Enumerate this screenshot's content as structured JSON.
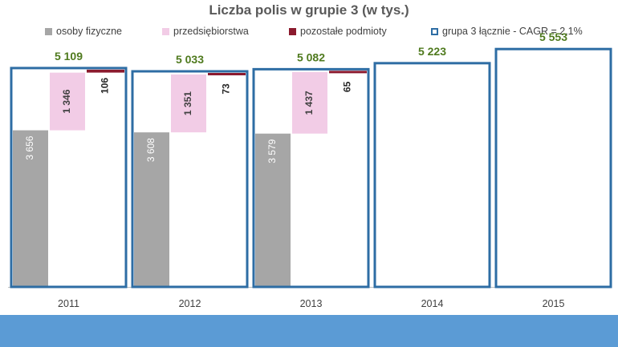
{
  "chart_data": {
    "type": "bar",
    "title": "Liczba polis w grupie 3 (w tys.)",
    "categories": [
      "2011",
      "2012",
      "2013",
      "2014",
      "2015"
    ],
    "series": [
      {
        "name": "osoby fizyczne",
        "color": "#a6a6a6",
        "values": [
          3656,
          3608,
          3579,
          null,
          null
        ],
        "labels": [
          "3 656",
          "3 608",
          "3 579",
          "",
          ""
        ]
      },
      {
        "name": "przedsiębiorstwa",
        "color": "#f2cce6",
        "values": [
          1346,
          1351,
          1437,
          null,
          null
        ],
        "labels": [
          "1 346",
          "1 351",
          "1 437",
          "",
          ""
        ]
      },
      {
        "name": "pozostałe podmioty",
        "color": "#8b1a2e",
        "values": [
          106,
          73,
          65,
          null,
          null
        ],
        "labels": [
          "106",
          "73",
          "65",
          "",
          ""
        ]
      },
      {
        "name": "grupa 3 łącznie - CAGR = 2,1%",
        "color": "#2e6da4",
        "values": [
          5109,
          5033,
          5082,
          5223,
          5553
        ],
        "labels": [
          "5 109",
          "5 033",
          "5 082",
          "5 223",
          "5 553"
        ]
      }
    ],
    "total_label_color": "#4f7a1e",
    "ylim": [
      0,
      5800
    ],
    "grid": false,
    "legend_position": "top"
  },
  "footer_band_color": "#5b9bd5"
}
